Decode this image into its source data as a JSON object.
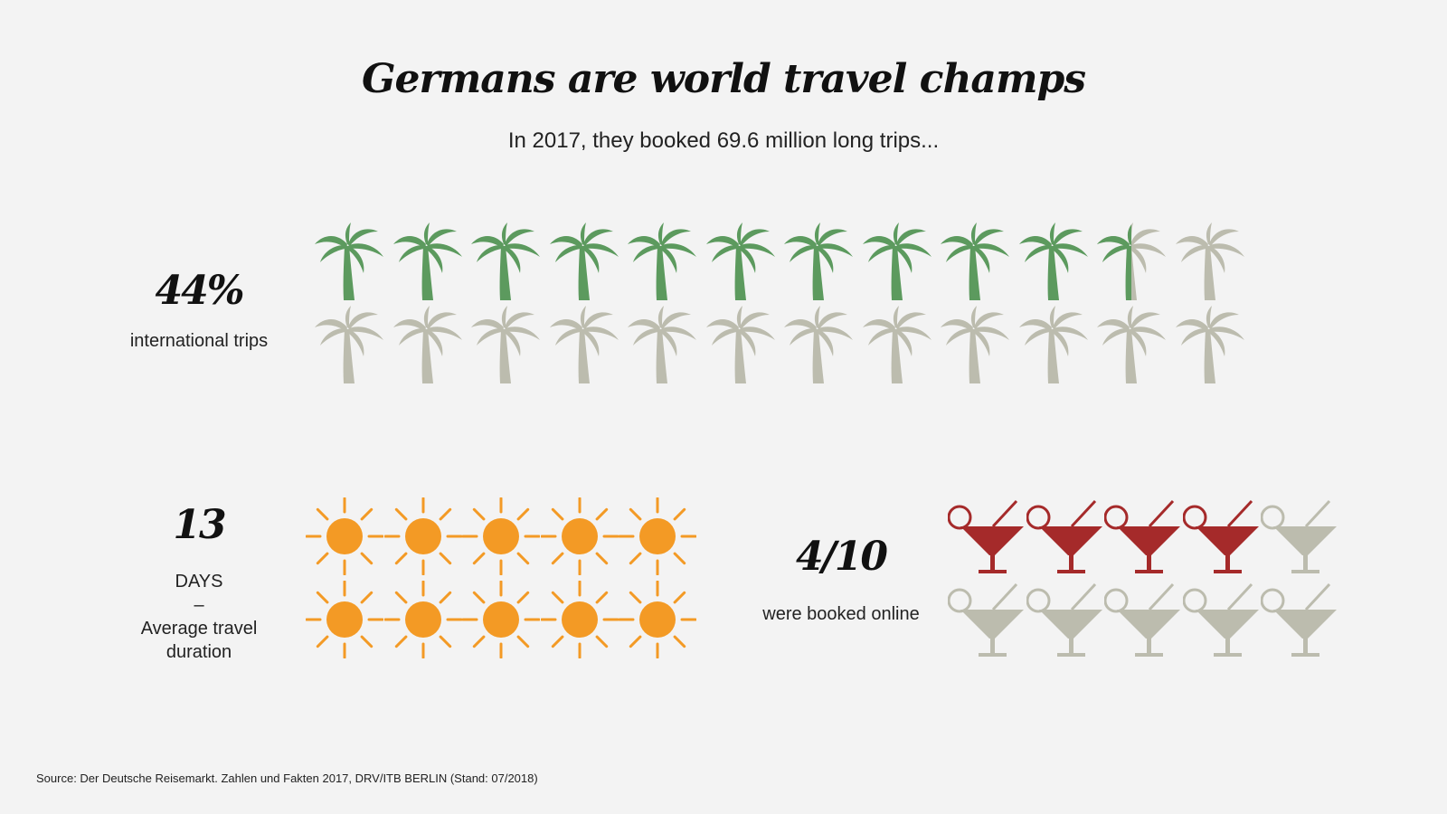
{
  "title": "Germans are world travel champs",
  "subtitle": "In 2017, they booked 69.6 million long trips...",
  "chart_data": [
    {
      "type": "pictogram",
      "icon": "palm-tree-icon",
      "value_label": "44%",
      "label": "international trips",
      "value": 0.44,
      "total_icons": 24,
      "filled_icons": 10.5,
      "colors": {
        "filled": "#5c9a5e",
        "empty": "#bcbcae"
      }
    },
    {
      "type": "pictogram",
      "icon": "sun-icon",
      "value_label": "13",
      "label_lines": [
        "DAYS",
        "–",
        "Average travel",
        "duration"
      ],
      "value": 13,
      "total_icons": 10,
      "filled_icons": 10,
      "colors": {
        "filled": "#f39a25",
        "empty": "#bcbcae"
      }
    },
    {
      "type": "pictogram",
      "icon": "cocktail-glass-icon",
      "value_label": "4/10",
      "label": "were booked online",
      "value": 0.4,
      "total_icons": 10,
      "filled_icons": 4,
      "colors": {
        "filled": "#a52a2a",
        "empty": "#bcbcae"
      }
    }
  ],
  "source": "Source: Der Deutsche Reisemarkt. Zahlen und Fakten 2017, DRV/ITB BERLIN (Stand: 07/2018)"
}
